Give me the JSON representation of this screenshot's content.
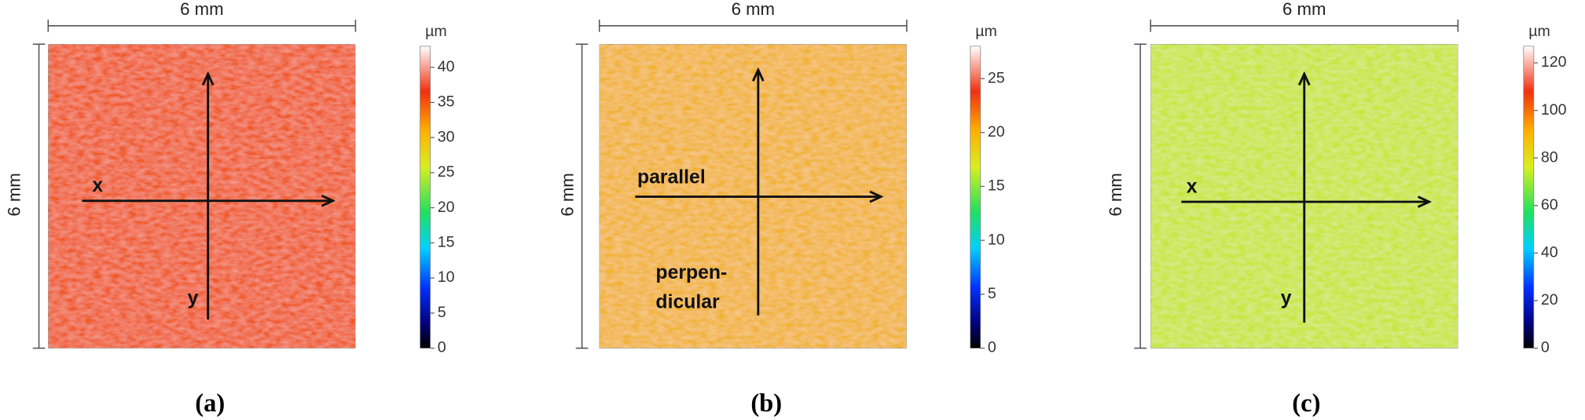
{
  "panels": [
    {
      "caption": "(a)",
      "width_label": "6 mm",
      "height_label": "6 mm",
      "arrow_labels": [
        "x",
        "y"
      ],
      "map_color": "#f05a28",
      "colorbar": {
        "unit": "µm",
        "range": [
          0,
          43
        ],
        "ticks": [
          0,
          5,
          10,
          15,
          20,
          25,
          30,
          35,
          40
        ]
      }
    },
    {
      "caption": "(b)",
      "width_label": "6 mm",
      "height_label": "6 mm",
      "arrow_labels": [
        "parallel",
        "perpen-",
        "dicular"
      ],
      "map_color": "#f2b233",
      "colorbar": {
        "unit": "µm",
        "range": [
          0,
          28
        ],
        "ticks": [
          0,
          5,
          10,
          15,
          20,
          25
        ]
      }
    },
    {
      "caption": "(c)",
      "width_label": "6 mm",
      "height_label": "6 mm",
      "arrow_labels": [
        "x",
        "y"
      ],
      "map_color": "#c8e63a",
      "colorbar": {
        "unit": "µm",
        "range": [
          0,
          127
        ],
        "ticks": [
          0,
          20,
          40,
          60,
          80,
          100,
          120
        ]
      }
    }
  ]
}
